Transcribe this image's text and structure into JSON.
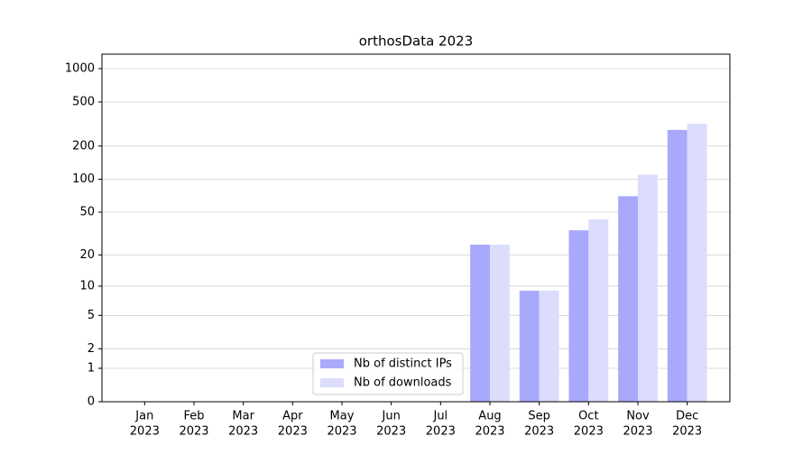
{
  "chart_data": {
    "type": "bar",
    "title": "orthosData 2023",
    "categories": [
      [
        "Jan",
        "2023"
      ],
      [
        "Feb",
        "2023"
      ],
      [
        "Mar",
        "2023"
      ],
      [
        "Apr",
        "2023"
      ],
      [
        "May",
        "2023"
      ],
      [
        "Jun",
        "2023"
      ],
      [
        "Jul",
        "2023"
      ],
      [
        "Aug",
        "2023"
      ],
      [
        "Sep",
        "2023"
      ],
      [
        "Oct",
        "2023"
      ],
      [
        "Nov",
        "2023"
      ],
      [
        "Dec",
        "2023"
      ]
    ],
    "series": [
      {
        "name": "Nb of distinct IPs",
        "color": "#a9a9fb",
        "values": [
          0,
          0,
          0,
          0,
          0,
          0,
          0,
          25,
          9,
          34,
          70,
          280
        ]
      },
      {
        "name": "Nb of downloads",
        "color": "#dcdcfd",
        "values": [
          0,
          0,
          0,
          0,
          0,
          0,
          0,
          25,
          9,
          43,
          110,
          318
        ]
      }
    ],
    "yscale": "log1p",
    "ylim": [
      0,
      1350
    ],
    "yticks": [
      0,
      1,
      2,
      5,
      10,
      20,
      50,
      100,
      200,
      500,
      1000
    ],
    "grid": true,
    "legend": "lower center"
  }
}
